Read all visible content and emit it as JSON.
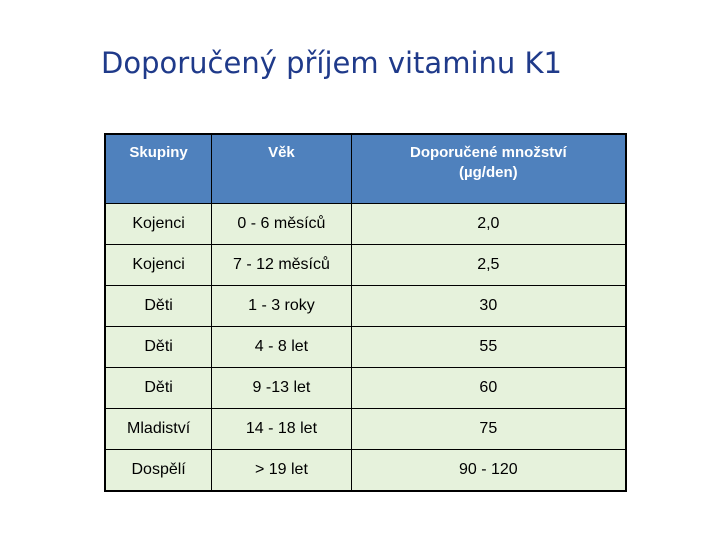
{
  "title": "Doporučený příjem vitaminu K1",
  "table": {
    "headers": [
      "Skupiny",
      "Věk",
      "Doporučené množství",
      "(µg/den)"
    ],
    "rows": [
      [
        "Kojenci",
        "0 - 6 měsíců",
        "2,0"
      ],
      [
        "Kojenci",
        "7 - 12 měsíců",
        "2,5"
      ],
      [
        "Děti",
        "1 - 3 roky",
        "30"
      ],
      [
        "Děti",
        "4 - 8 let",
        "55"
      ],
      [
        "Děti",
        "9 -13 let",
        "60"
      ],
      [
        "Mladiství",
        "14 - 18 let",
        "75"
      ],
      [
        "Dospělí",
        "> 19 let",
        "90 - 120"
      ]
    ]
  },
  "colors": {
    "title": "#1f3a8a",
    "header_bg": "#4f81bd",
    "row_bg": "#e6f2dc"
  }
}
